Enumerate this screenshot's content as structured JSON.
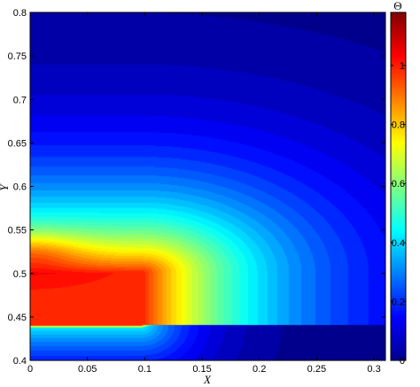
{
  "chart_data": {
    "type": "heatmap",
    "title": "",
    "xlabel": "X",
    "ylabel": "Y",
    "xlim": [
      0,
      0.31
    ],
    "ylim": [
      0.4,
      0.8
    ],
    "x_ticks": [
      "0",
      "0.05",
      "0.1",
      "0.15",
      "0.2",
      "0.25",
      "0.3"
    ],
    "y_ticks": [
      "0.4",
      "0.45",
      "0.5",
      "0.55",
      "0.6",
      "0.65",
      "0.7",
      "0.75",
      "0.8"
    ],
    "colorbar": {
      "label": "Θ",
      "range": [
        0,
        1.18
      ],
      "ticks": [
        "0",
        "0.2",
        "0.4",
        "0.6",
        "0.8",
        "1"
      ],
      "colormap": "jet"
    },
    "field_features": {
      "peak_value": 1.15,
      "peak_location": [
        0.0,
        0.525
      ],
      "hot_block_value": 1.0,
      "hot_block_x": [
        0,
        0.097
      ],
      "hot_block_y": [
        0.44,
        0.5
      ],
      "background_value": 0.05
    },
    "grid": false
  }
}
